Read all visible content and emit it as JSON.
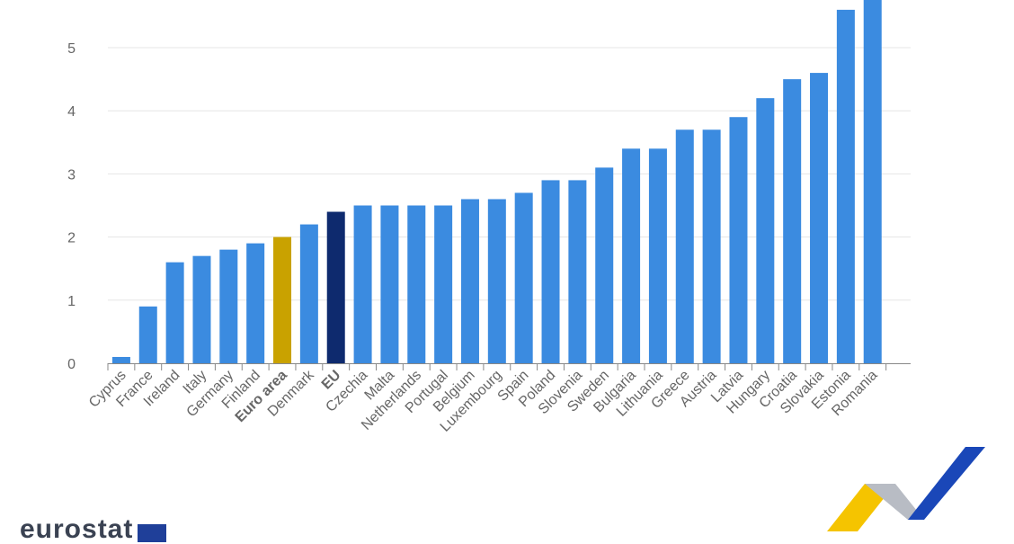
{
  "chart_data": {
    "type": "bar",
    "categories": [
      "Cyprus",
      "France",
      "Ireland",
      "Italy",
      "Germany",
      "Finland",
      "Euro area",
      "Denmark",
      "EU",
      "Czechia",
      "Malta",
      "Netherlands",
      "Portugal",
      "Belgium",
      "Luxembourg",
      "Spain",
      "Poland",
      "Slovenia",
      "Sweden",
      "Bulgaria",
      "Lithuania",
      "Greece",
      "Austria",
      "Latvia",
      "Hungary",
      "Croatia",
      "Slovakia",
      "Estonia",
      "Romania"
    ],
    "values": [
      0.1,
      0.9,
      1.6,
      1.7,
      1.8,
      1.9,
      2.0,
      2.2,
      2.4,
      2.5,
      2.5,
      2.5,
      2.5,
      2.6,
      2.6,
      2.7,
      2.9,
      2.9,
      3.1,
      3.4,
      3.4,
      3.7,
      3.7,
      3.9,
      4.2,
      4.5,
      4.6,
      5.6,
      5.8
    ],
    "highlight": {
      "Euro area": "#c9a200",
      "EU": "#0e2a6e"
    },
    "bold_categories": [
      "Euro area",
      "EU"
    ],
    "bar_color": "#3b8be0",
    "yticks": [
      0,
      1,
      2,
      3,
      4,
      5
    ],
    "ylim": [
      0,
      5.8
    ],
    "grid": true,
    "title": "",
    "xlabel": "",
    "ylabel": ""
  },
  "branding": {
    "logo_text": "eurostat",
    "colors": {
      "yellow": "#f5c400",
      "blue": "#1a47b8",
      "grey": "#b8bcc4"
    }
  }
}
